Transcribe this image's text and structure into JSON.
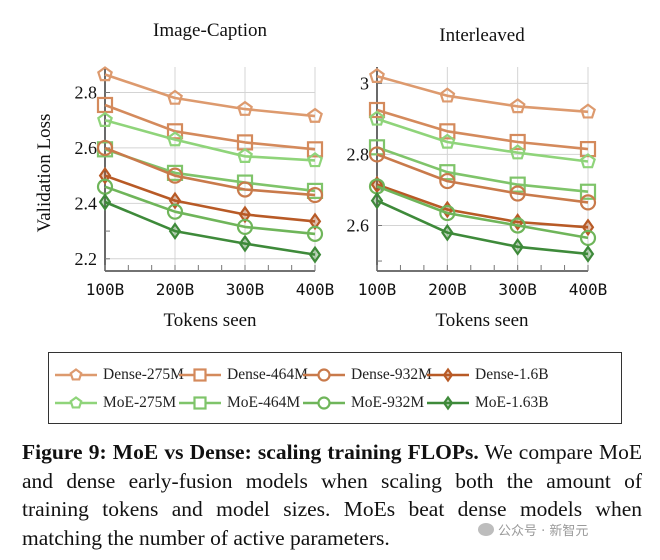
{
  "chart_data": [
    {
      "type": "line",
      "title": "Image-Caption",
      "xlabel": "Tokens seen",
      "ylabel": "Validation Loss",
      "x": [
        "100B",
        "200B",
        "300B",
        "400B"
      ],
      "yticks": [
        2.2,
        2.4,
        2.6,
        2.8
      ],
      "ytick_labels": [
        "2.2",
        "2.4",
        "2.6",
        "2.8"
      ],
      "ylim": [
        2.156,
        2.892
      ],
      "grid": true,
      "series": [
        {
          "name": "Dense-275M",
          "values": [
            2.865,
            2.78,
            2.74,
            2.715
          ]
        },
        {
          "name": "Dense-464M",
          "values": [
            2.755,
            2.66,
            2.62,
            2.595
          ]
        },
        {
          "name": "MoE-275M",
          "values": [
            2.7,
            2.63,
            2.57,
            2.555
          ]
        },
        {
          "name": "MoE-464M",
          "values": [
            2.595,
            2.51,
            2.475,
            2.445
          ]
        },
        {
          "name": "Dense-932M",
          "values": [
            2.6,
            2.5,
            2.45,
            2.43
          ]
        },
        {
          "name": "Dense-1.6B",
          "values": [
            2.5,
            2.41,
            2.36,
            2.335
          ]
        },
        {
          "name": "MoE-932M",
          "values": [
            2.46,
            2.37,
            2.315,
            2.29
          ]
        },
        {
          "name": "MoE-1.63B",
          "values": [
            2.405,
            2.3,
            2.255,
            2.215
          ]
        }
      ]
    },
    {
      "type": "line",
      "title": "Interleaved",
      "xlabel": "Tokens seen",
      "ylabel": "",
      "x": [
        "100B",
        "200B",
        "300B",
        "400B"
      ],
      "yticks": [
        2.6,
        2.8,
        3.0
      ],
      "ytick_labels": [
        "2.6",
        "2.8",
        "3"
      ],
      "ylim": [
        2.472,
        3.046
      ],
      "grid": true,
      "series": [
        {
          "name": "Dense-275M",
          "values": [
            3.02,
            2.965,
            2.935,
            2.92
          ]
        },
        {
          "name": "Dense-464M",
          "values": [
            2.925,
            2.865,
            2.835,
            2.815
          ]
        },
        {
          "name": "MoE-275M",
          "values": [
            2.9,
            2.835,
            2.805,
            2.78
          ]
        },
        {
          "name": "MoE-464M",
          "values": [
            2.82,
            2.75,
            2.715,
            2.695
          ]
        },
        {
          "name": "Dense-932M",
          "values": [
            2.8,
            2.725,
            2.69,
            2.665
          ]
        },
        {
          "name": "Dense-1.6B",
          "values": [
            2.715,
            2.645,
            2.61,
            2.595
          ]
        },
        {
          "name": "MoE-932M",
          "values": [
            2.71,
            2.635,
            2.6,
            2.565
          ]
        },
        {
          "name": "MoE-1.63B",
          "values": [
            2.67,
            2.58,
            2.54,
            2.52
          ]
        }
      ]
    }
  ],
  "series_style": {
    "Dense-275M": {
      "color": "#dd9a6e",
      "marker": "pentagon"
    },
    "Dense-464M": {
      "color": "#d48a5c",
      "marker": "square"
    },
    "Dense-932M": {
      "color": "#c97a4b",
      "marker": "circle"
    },
    "Dense-1.6B": {
      "color": "#b85a26",
      "marker": "diamond"
    },
    "MoE-275M": {
      "color": "#8fd47a",
      "marker": "pentagon"
    },
    "MoE-464M": {
      "color": "#7fc46a",
      "marker": "square"
    },
    "MoE-932M": {
      "color": "#6fb55a",
      "marker": "circle"
    },
    "MoE-1.63B": {
      "color": "#3e8a3a",
      "marker": "diamond"
    }
  },
  "legend": {
    "placement": "bottom",
    "rows": [
      [
        "Dense-275M",
        "Dense-464M",
        "Dense-932M",
        "Dense-1.6B"
      ],
      [
        "MoE-275M",
        "MoE-464M",
        "MoE-932M",
        "MoE-1.63B"
      ]
    ]
  },
  "caption": {
    "label": "Figure 9: MoE vs Dense: scaling training FLOPs.",
    "text": " We compare MoE and dense early-fusion models when scaling both the amount of training tokens and model sizes. MoEs beat dense models when matching the number of active parameters."
  },
  "watermark": {
    "icon": "wechat-icon",
    "text": "公众号 · 新智元"
  }
}
